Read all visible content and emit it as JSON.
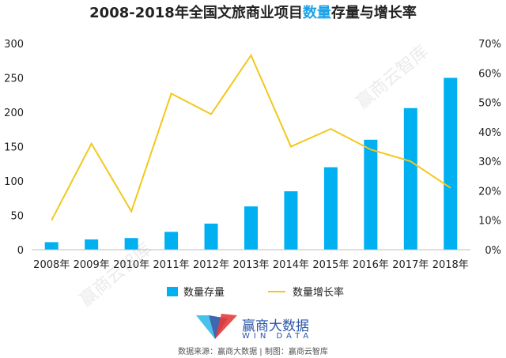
{
  "title": {
    "prefix": "2008-2018年全国文旅商业项目",
    "highlight": "数量",
    "suffix": "存量与增长率",
    "highlight_color": "#1aa3e8"
  },
  "watermark": "赢商云智库",
  "brand": {
    "name": "赢商大数据",
    "sub": "WIN DATA",
    "color_blue": "#2a55a8",
    "color_red": "#e63c3c",
    "color_cyan": "#2ab6e8"
  },
  "source": "数据来源：赢商大数据 | 制图：赢商云智库",
  "chart_data": {
    "type": "bar",
    "categories": [
      "2008年",
      "2009年",
      "2010年",
      "2011年",
      "2012年",
      "2013年",
      "2014年",
      "2015年",
      "2016年",
      "2017年",
      "2018年"
    ],
    "series": [
      {
        "name": "数量存量",
        "type": "bar",
        "axis": "left",
        "color": "#00b0f0",
        "values": [
          11,
          15,
          17,
          26,
          38,
          63,
          85,
          120,
          160,
          206,
          250
        ]
      },
      {
        "name": "数量增长率",
        "type": "line",
        "axis": "right",
        "color": "#f2c81d",
        "values": [
          0.1,
          0.36,
          0.13,
          0.53,
          0.46,
          0.66,
          0.35,
          0.41,
          0.34,
          0.3,
          0.21
        ]
      }
    ],
    "y_left": {
      "min": 0,
      "max": 300,
      "ticks": [
        "0",
        "50",
        "100",
        "150",
        "200",
        "250",
        "300"
      ]
    },
    "y_right": {
      "min": 0,
      "max": 0.7,
      "ticks": [
        "0%",
        "10%",
        "20%",
        "30%",
        "40%",
        "50%",
        "60%",
        "70%"
      ]
    },
    "legend_position": "bottom",
    "grid": false
  }
}
